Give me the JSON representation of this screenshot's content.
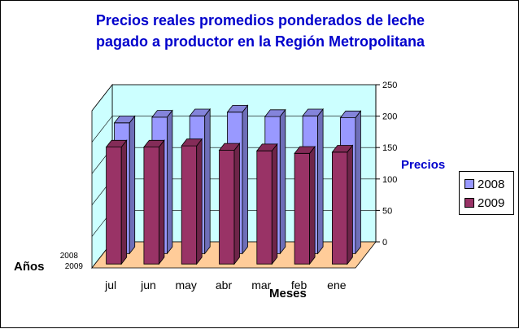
{
  "title": {
    "line1": "Precios reales promedios ponderados de leche",
    "line2": "pagado a productor en la Región Metropolitana"
  },
  "labels": {
    "ylabel": "Precios",
    "xlabel": "Meses",
    "zlabel": "Años"
  },
  "colors": {
    "series_2008": "#9999ff",
    "series_2009": "#993366",
    "floor": "#ffcc99",
    "walls": "#ccffff",
    "title": "#0000cc"
  },
  "chart_data": {
    "type": "bar",
    "subtype": "3d-column",
    "title": "Precios reales promedios ponderados de leche pagado a productor en la Región Metropolitana",
    "xlabel": "Meses",
    "ylabel": "Precios",
    "zlabel": "Años",
    "categories": [
      "jul",
      "jun",
      "may",
      "abr",
      "mar",
      "feb",
      "ene"
    ],
    "series": [
      {
        "name": "2008",
        "values": [
          208,
          217,
          219,
          225,
          218,
          219,
          216
        ]
      },
      {
        "name": "2009",
        "values": [
          186,
          186,
          188,
          181,
          180,
          176,
          178
        ]
      }
    ],
    "ylim": [
      0,
      250
    ],
    "yticks": [
      0,
      50,
      100,
      150,
      200,
      250
    ],
    "ytick_labels": [
      "0",
      "50",
      "100",
      "150",
      "200",
      "250"
    ],
    "depth_labels": [
      "2008",
      "2009"
    ],
    "grid": true,
    "legend": "right"
  }
}
